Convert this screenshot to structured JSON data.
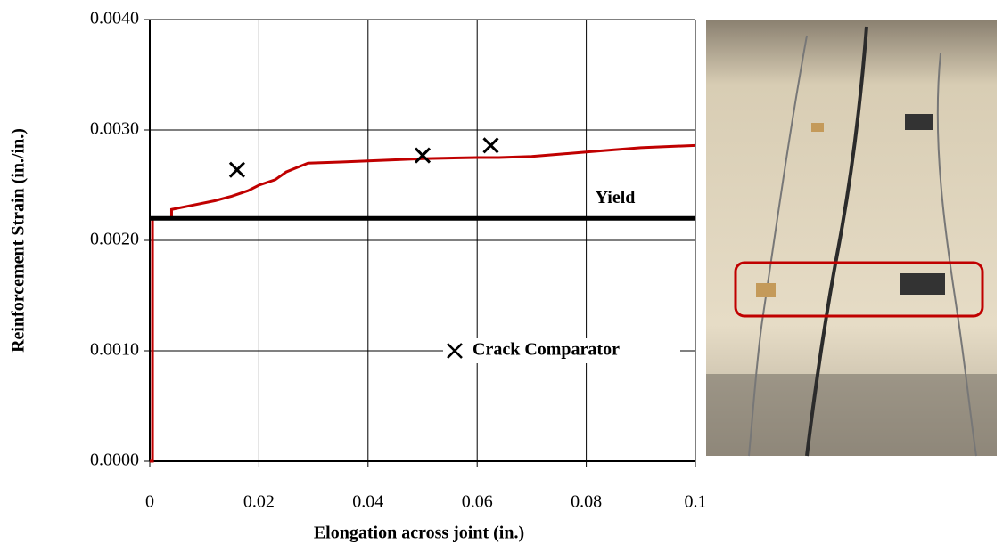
{
  "chart_data": {
    "type": "line",
    "x_label": "Elongation across joint (in.)",
    "y_label": "Reinforcement Strain  (in./in.)",
    "xlim": [
      0,
      0.1
    ],
    "ylim": [
      0,
      0.004
    ],
    "xticks": [
      0,
      0.02,
      0.04,
      0.06,
      0.08,
      0.1
    ],
    "yticks": [
      {
        "value": 0,
        "label": "0.0000"
      },
      {
        "value": 0.001,
        "label": "0.0010"
      },
      {
        "value": 0.002,
        "label": "0.0020"
      },
      {
        "value": 0.003,
        "label": "0.0030"
      },
      {
        "value": 0.004,
        "label": "0.0040"
      }
    ],
    "grid": true,
    "series": [
      {
        "type": "line",
        "color": "#c00000",
        "x": [
          0,
          0.0005,
          0.0005,
          0.004,
          0.004,
          0.008,
          0.012,
          0.015,
          0.018,
          0.02,
          0.023,
          0.025,
          0.027,
          0.029,
          0.035,
          0.04,
          0.05,
          0.06,
          0.064,
          0.07,
          0.075,
          0.08,
          0.09,
          0.1
        ],
        "values": [
          0,
          0,
          0.0022,
          0.0022,
          0.00228,
          0.00232,
          0.00236,
          0.0024,
          0.00245,
          0.0025,
          0.00255,
          0.00262,
          0.00266,
          0.0027,
          0.00271,
          0.00272,
          0.00274,
          0.00275,
          0.00275,
          0.00276,
          0.00278,
          0.0028,
          0.00284,
          0.00286
        ]
      },
      {
        "type": "line",
        "name": "Yield",
        "color": "#000000",
        "x": [
          0,
          0.1
        ],
        "values": [
          0.0022,
          0.0022
        ]
      },
      {
        "type": "scatter",
        "name": "Crack Comparator",
        "color": "#000000",
        "x": [
          0.016,
          0.05,
          0.0625
        ],
        "values": [
          0.00264,
          0.00277,
          0.00286
        ]
      }
    ]
  }
}
